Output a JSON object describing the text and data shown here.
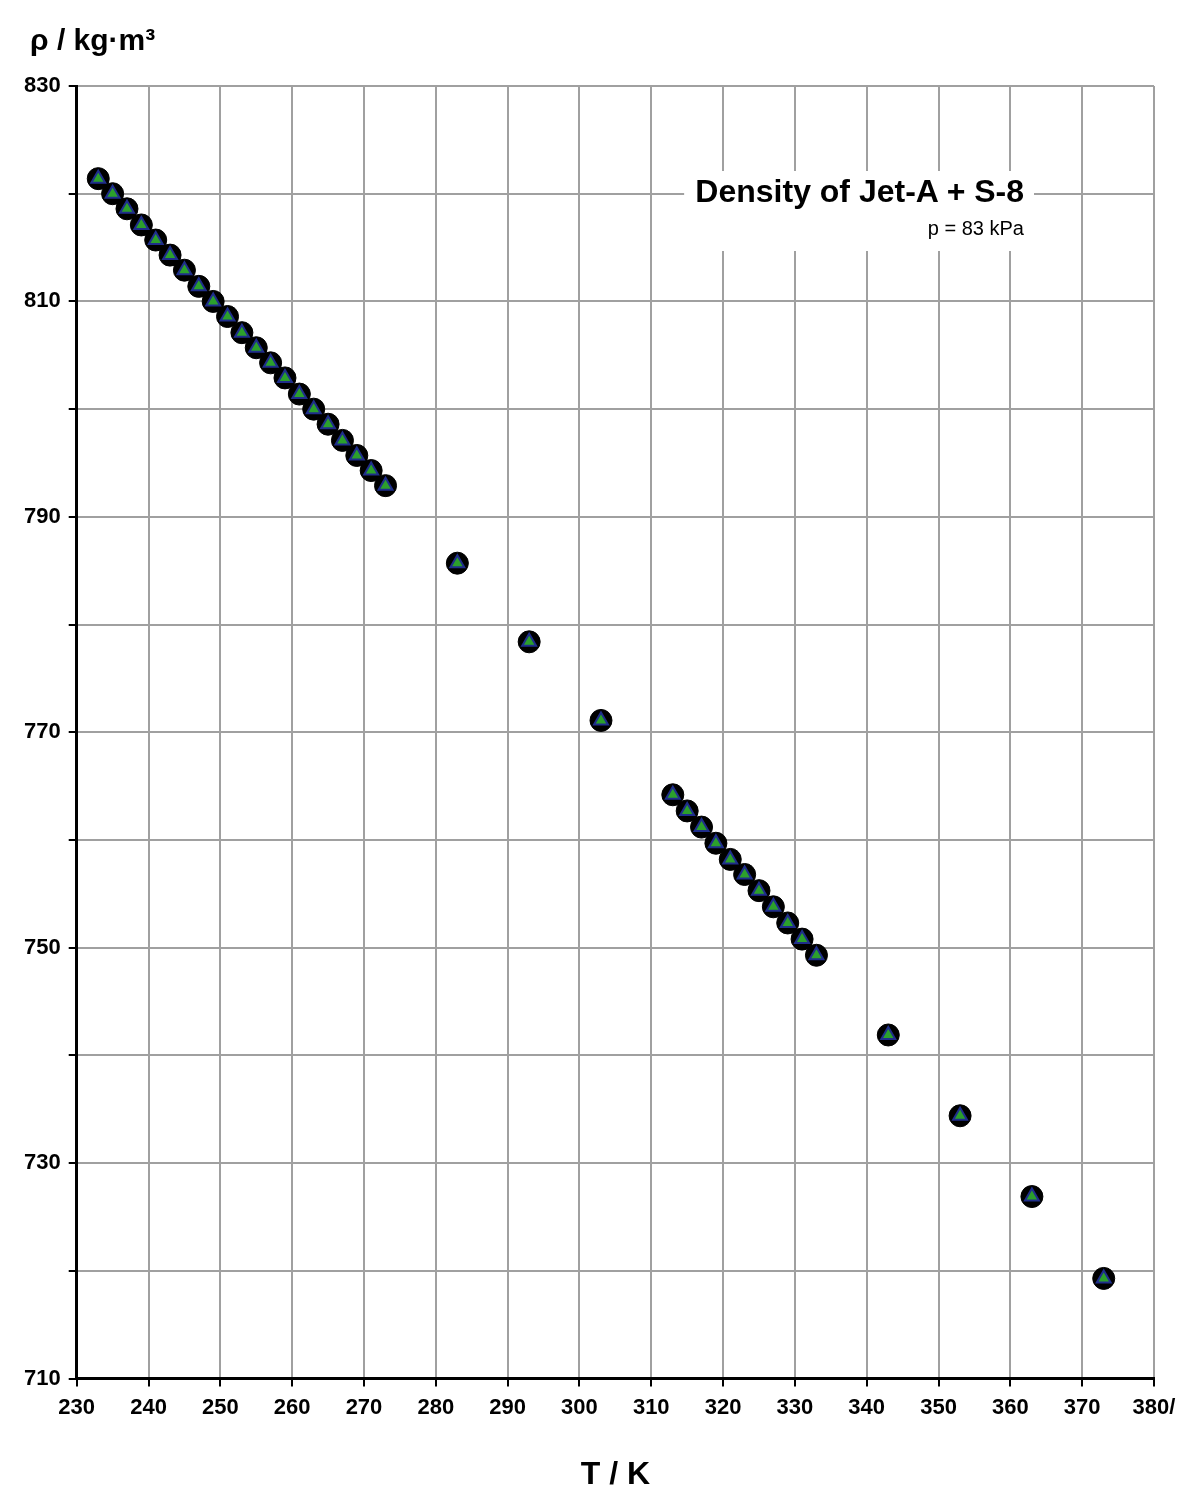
{
  "chart_data": {
    "type": "scatter",
    "title": "Density of Jet-A + S-8",
    "subtitle": "p = 83 kPa",
    "xlabel": "T / K",
    "ylabel": "ρ / kg·m³",
    "x": [
      233,
      235,
      237,
      239,
      241,
      243,
      245,
      247,
      249,
      251,
      253,
      255,
      257,
      259,
      261,
      263,
      265,
      267,
      269,
      271,
      273,
      283,
      293,
      303,
      313,
      315,
      317,
      319,
      321,
      323,
      325,
      327,
      329,
      331,
      333,
      343,
      353,
      363,
      373
    ],
    "series": [
      {
        "color": "#000000",
        "marker": "circle",
        "values": [
          821.4,
          820.0,
          818.6,
          817.1,
          815.7,
          814.3,
          812.9,
          811.4,
          810.0,
          808.6,
          807.1,
          805.7,
          804.3,
          802.9,
          801.4,
          800.0,
          798.6,
          797.1,
          795.7,
          794.3,
          792.9,
          785.7,
          778.4,
          771.1,
          764.2,
          762.7,
          761.2,
          759.7,
          758.2,
          756.8,
          755.3,
          753.8,
          752.3,
          750.8,
          749.3,
          741.9,
          734.4,
          726.9,
          719.3
        ]
      },
      {
        "color": "#2ca02c",
        "marker": "triangle",
        "values": [
          821.4,
          820.0,
          818.6,
          817.1,
          815.7,
          814.3,
          812.9,
          811.4,
          810.0,
          808.6,
          807.1,
          805.7,
          804.3,
          802.9,
          801.4,
          800.0,
          798.6,
          797.1,
          795.7,
          794.3,
          792.9,
          785.7,
          778.4,
          771.1,
          764.2,
          762.7,
          761.2,
          759.7,
          758.2,
          756.8,
          755.3,
          753.8,
          752.3,
          750.8,
          749.3,
          741.9,
          734.4,
          726.9,
          719.3
        ]
      }
    ],
    "xlim": [
      230,
      380
    ],
    "xticks": [
      230,
      240,
      250,
      260,
      270,
      280,
      290,
      300,
      310,
      320,
      330,
      340,
      350,
      360,
      370,
      {
        "value": 380,
        "label": "380/"
      }
    ],
    "ylim": [
      710,
      830
    ],
    "yticks": [
      710,
      {
        "value": 720,
        "label": null
      },
      730,
      {
        "value": 740,
        "label": null
      },
      750,
      {
        "value": 760,
        "label": null
      },
      770,
      {
        "value": 780,
        "label": null
      },
      790,
      {
        "value": 800,
        "label": null
      },
      810,
      {
        "value": 820,
        "label": null
      },
      830
    ],
    "grid": true,
    "legend": false
  }
}
